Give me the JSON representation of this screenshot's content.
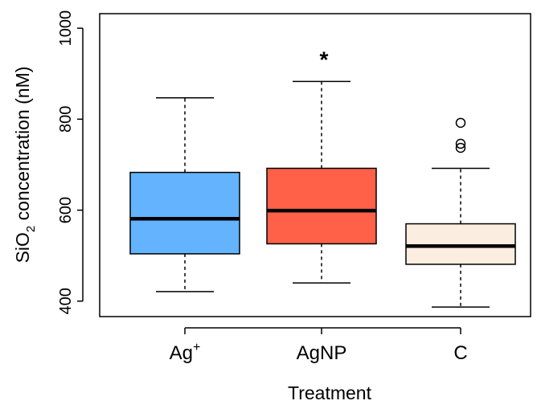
{
  "chart_data": {
    "type": "boxplot",
    "title": "",
    "xlabel": "Treatment",
    "ylabel": "SiO2 concentration (nM)",
    "ylabel_parts": {
      "a": "SiO",
      "sub": "2",
      "b": " concentration (nM)"
    },
    "ylim": [
      366,
      1032
    ],
    "yticks": [
      400,
      600,
      800,
      1000
    ],
    "ytick_labels": [
      "400",
      "600",
      "800",
      "1000"
    ],
    "grid": false,
    "legend": "none",
    "categories": [
      "Ag+",
      "AgNP",
      "C"
    ],
    "category_labels": [
      {
        "base": "Ag",
        "sup": "+"
      },
      {
        "base": "AgNP",
        "sup": ""
      },
      {
        "base": "C",
        "sup": ""
      }
    ],
    "boxes": [
      {
        "name": "Ag+",
        "whisker_low": 421,
        "q1": 504,
        "median": 581,
        "q3": 683,
        "whisker_high": 847,
        "outliers": [],
        "annotation": "",
        "color": "#63B3FF"
      },
      {
        "name": "AgNP",
        "whisker_low": 440,
        "q1": 526,
        "median": 599,
        "q3": 692,
        "whisker_high": 883,
        "outliers": [],
        "annotation": "*",
        "color": "#FF6048"
      },
      {
        "name": "C",
        "whisker_low": 387,
        "q1": 481,
        "median": 521,
        "q3": 570,
        "whisker_high": 692,
        "outliers": [
          737,
          746,
          792
        ],
        "annotation": "",
        "color": "#FBEDE0"
      }
    ]
  }
}
